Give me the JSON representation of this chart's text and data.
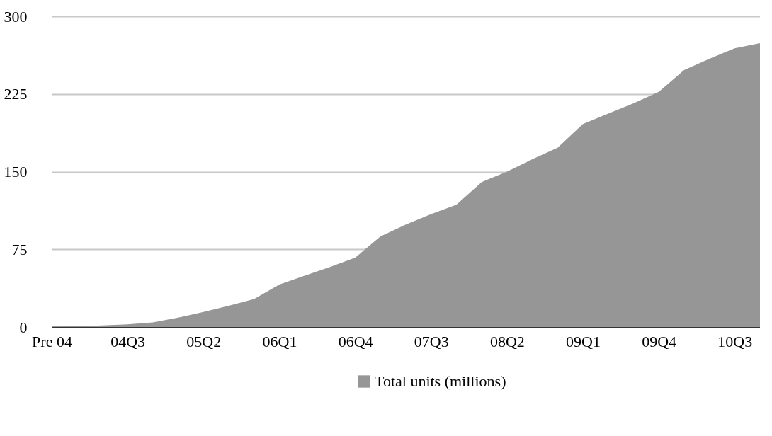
{
  "chart_data": {
    "type": "area",
    "categories": [
      "Pre 04",
      null,
      null,
      "04Q3",
      null,
      null,
      "05Q2",
      null,
      null,
      "06Q1",
      null,
      null,
      "06Q4",
      null,
      null,
      "07Q3",
      null,
      null,
      "08Q2",
      null,
      null,
      "09Q1",
      null,
      null,
      "09Q4",
      null,
      null,
      "10Q3",
      null
    ],
    "series": [
      {
        "name": "Total units (millions)",
        "color": "#969696",
        "values": [
          1,
          0.5,
          1.5,
          2.5,
          4.5,
          9,
          14.5,
          20.5,
          27,
          41,
          49.5,
          58,
          67,
          87.5,
          99,
          109,
          118,
          140,
          150,
          162,
          173,
          196,
          206,
          216,
          227,
          248,
          259,
          269,
          274
        ]
      }
    ],
    "ylim": [
      0,
      300
    ],
    "yticks": [
      0,
      75,
      150,
      225,
      300
    ],
    "grid": "y",
    "legend": "bottom"
  }
}
